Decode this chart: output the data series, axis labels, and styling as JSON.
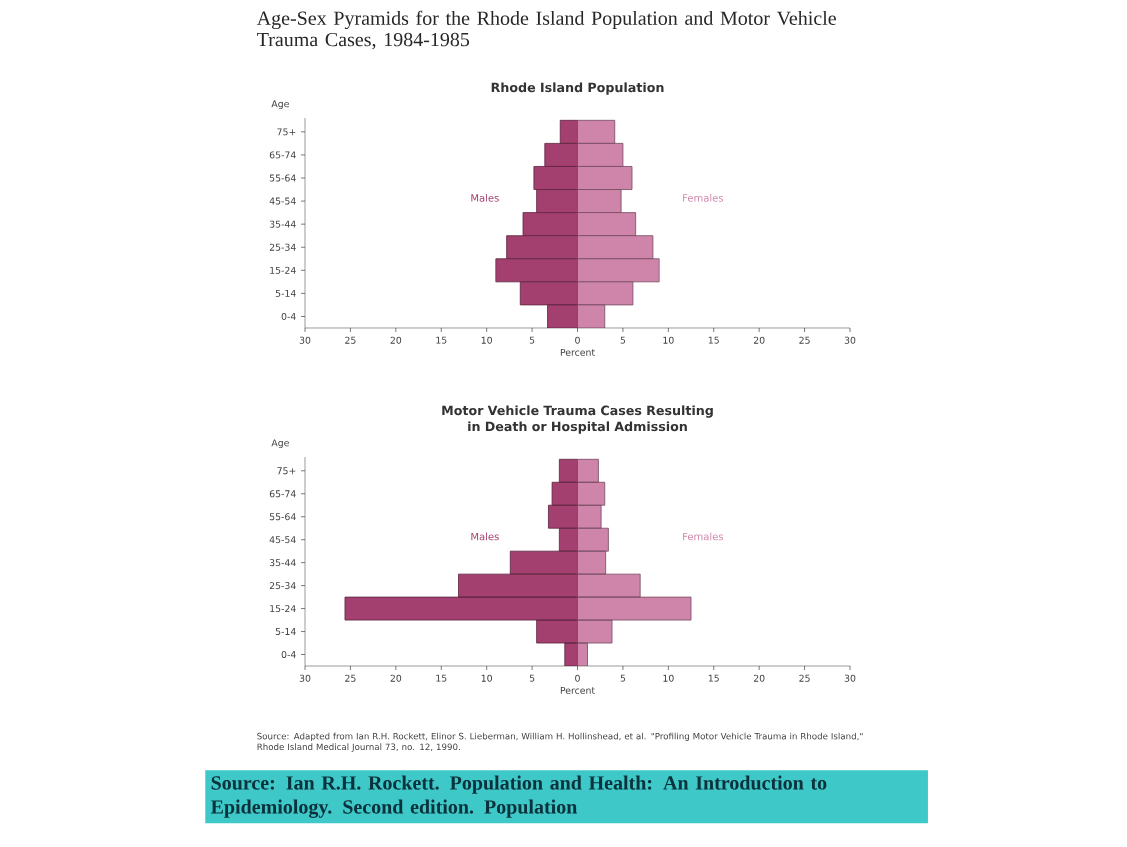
{
  "chart_data": [
    {
      "type": "bar",
      "orientation": "horizontal",
      "title": "Age-Sex Pyramids for the Rhode Island Population and Motor Vehicle Trauma Cases, 1984-1985",
      "subtitle": "Rhode Island Population",
      "xlabel": "Percent",
      "ylabel": "Age",
      "stacked": true,
      "categories": [
        "75+",
        "65-74",
        "55-64",
        "45-54",
        "35-44",
        "25-34",
        "15-24",
        "5-14",
        "0-4"
      ],
      "series": [
        {
          "name": "Males",
          "color": "#a3406f",
          "values": [
            -1.9,
            -3.6,
            -4.8,
            -4.5,
            -6.0,
            -7.8,
            -9.0,
            -6.3,
            -3.3
          ]
        },
        {
          "name": "Females",
          "color": "#cf85aa",
          "values": [
            4.1,
            5.0,
            6.0,
            4.8,
            6.4,
            8.3,
            9.0,
            6.1,
            3.0
          ]
        }
      ],
      "xlim": [
        -30,
        30
      ],
      "xticks": [
        {
          "value": -30,
          "label": "30"
        },
        {
          "value": -25,
          "label": "25"
        },
        {
          "value": -20,
          "label": "20"
        },
        {
          "value": -15,
          "label": "15"
        },
        {
          "value": -10,
          "label": "10"
        },
        {
          "value": -5,
          "label": "5"
        },
        0,
        5,
        10,
        15,
        20,
        25,
        30
      ],
      "legend": false,
      "grid": false
    },
    {
      "type": "bar",
      "orientation": "horizontal",
      "title": "Motor Vehicle Trauma Cases Resulting in Death or Hospital Admission",
      "xlabel": "Percent",
      "ylabel": "Age",
      "stacked": true,
      "categories": [
        "75+",
        "65-74",
        "55-64",
        "45-54",
        "35-44",
        "25-34",
        "15-24",
        "5-14",
        "0-4"
      ],
      "series": [
        {
          "name": "Males",
          "color": "#a3406f",
          "values": [
            -2.0,
            -2.8,
            -3.2,
            -2.0,
            -7.4,
            -13.1,
            -25.6,
            -4.5,
            -1.4
          ]
        },
        {
          "name": "Females",
          "color": "#cf85aa",
          "values": [
            2.3,
            3.0,
            2.6,
            3.4,
            3.1,
            6.9,
            12.5,
            3.8,
            1.1
          ]
        }
      ],
      "xlim": [
        -30,
        30
      ],
      "xticks": [
        {
          "value": -30,
          "label": "30"
        },
        {
          "value": -25,
          "label": "25"
        },
        {
          "value": -20,
          "label": "20"
        },
        {
          "value": -15,
          "label": "15"
        },
        {
          "value": -10,
          "label": "10"
        },
        {
          "value": -5,
          "label": "5"
        },
        0,
        5,
        10,
        15,
        20,
        25,
        30
      ],
      "legend": false,
      "grid": false,
      "annotations": [
        "Source: Adapted from Ian R.H. Rockett, Elinor S. Lieberman, William H. Hollinshead, et al. \"Profiling Motor Vehicle Trauma in Rhode Island,\" Rhode Island Medical Journal 73, no. 12, 1990.",
        "Source: Ian R.H. Rockett. Population and Health: An Introduction to Epidemiology. Second edition. Population"
      ]
    }
  ]
}
